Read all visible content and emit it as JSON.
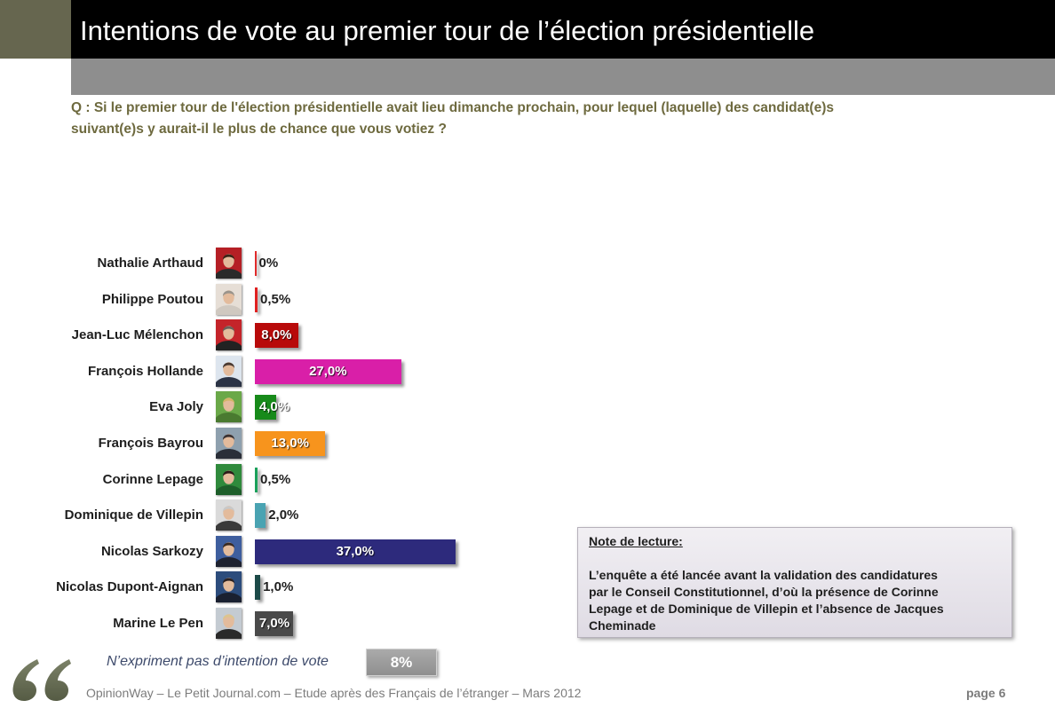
{
  "header": {
    "title": "Intentions de vote au premier tour de l’élection présidentielle"
  },
  "question": {
    "lines": [
      "Q : Si le premier tour de l'élection présidentielle avait lieu dimanche prochain, pour lequel (laquelle) des candidat(e)s",
      "suivant(e)s y aurait-il le plus de chance que vous votiez ?"
    ]
  },
  "chart_data": {
    "type": "bar",
    "orientation": "horizontal",
    "categories": [
      "Nathalie Arthaud",
      "Philippe Poutou",
      "Jean-Luc Mélenchon",
      "François Hollande",
      "Eva Joly",
      "François Bayrou",
      "Corinne Lepage",
      "Dominique de Villepin",
      "Nicolas Sarkozy",
      "Nicolas Dupont-Aignan",
      "Marine Le Pen"
    ],
    "values": [
      0,
      0.5,
      8.0,
      27.0,
      4.0,
      13.0,
      0.5,
      2.0,
      37.0,
      1.0,
      7.0
    ],
    "value_labels": [
      "0%",
      "0,5%",
      "8,0%",
      "27,0%",
      "4,0%",
      "13,0%",
      "0,5%",
      "2,0%",
      "37,0%",
      "1,0%",
      "7,0%"
    ],
    "colors": [
      "#e02a2a",
      "#e02020",
      "#b80a0a",
      "#d91fa8",
      "#178a1a",
      "#f7941d",
      "#1aa05a",
      "#4aa3b2",
      "#2d2a7c",
      "#1c4a48",
      "#4a4a4a"
    ]
  },
  "photos": [
    {
      "bg": "#b51f25",
      "hair": "#3b2418",
      "suit": "#2a2a2a"
    },
    {
      "bg": "#e6ded6",
      "hair": "#9a948c",
      "suit": "#cfc8c0"
    },
    {
      "bg": "#c4242a",
      "hair": "#6a605a",
      "suit": "#222222"
    },
    {
      "bg": "#dde5ee",
      "hair": "#4a3a32",
      "suit": "#2b3345"
    },
    {
      "bg": "#6aa848",
      "hair": "#d4b46a",
      "suit": "#4a7a30"
    },
    {
      "bg": "#8ea0ae",
      "hair": "#3a3232",
      "suit": "#2a2e38"
    },
    {
      "bg": "#2f8a3c",
      "hair": "#2a1a18",
      "suit": "#1d5e2a"
    },
    {
      "bg": "#dadada",
      "hair": "#c8c8c8",
      "suit": "#3a3a3a"
    },
    {
      "bg": "#3e5e9e",
      "hair": "#3a2a22",
      "suit": "#1e2230"
    },
    {
      "bg": "#2c4c7c",
      "hair": "#2a2020",
      "suit": "#1a2030"
    },
    {
      "bg": "#c4cbd2",
      "hair": "#dcc48e",
      "suit": "#2a2a2a"
    }
  ],
  "no_intention": {
    "label": "N’expriment pas d’intention de vote",
    "value_label": "8%"
  },
  "note": {
    "title": "Note de lecture:",
    "lines": [
      "L’enquête a été lancée avant la validation des candidatures",
      "par le Conseil Constitutionnel, d’où la présence de Corinne",
      "Lepage et de Dominique de Villepin et l’absence de Jacques",
      "Cheminade"
    ]
  },
  "footer": {
    "source": "OpinionWay – Le Petit Journal.com – Etude après des Français de l’étranger – Mars 2012",
    "page": "page 6"
  },
  "icons": {
    "quote": "quote-icon"
  },
  "theme": {
    "title_bg": "#000000",
    "band_gray": "#8e8e8e",
    "olive": "#66664f",
    "question_color": "#6e6a3f"
  }
}
